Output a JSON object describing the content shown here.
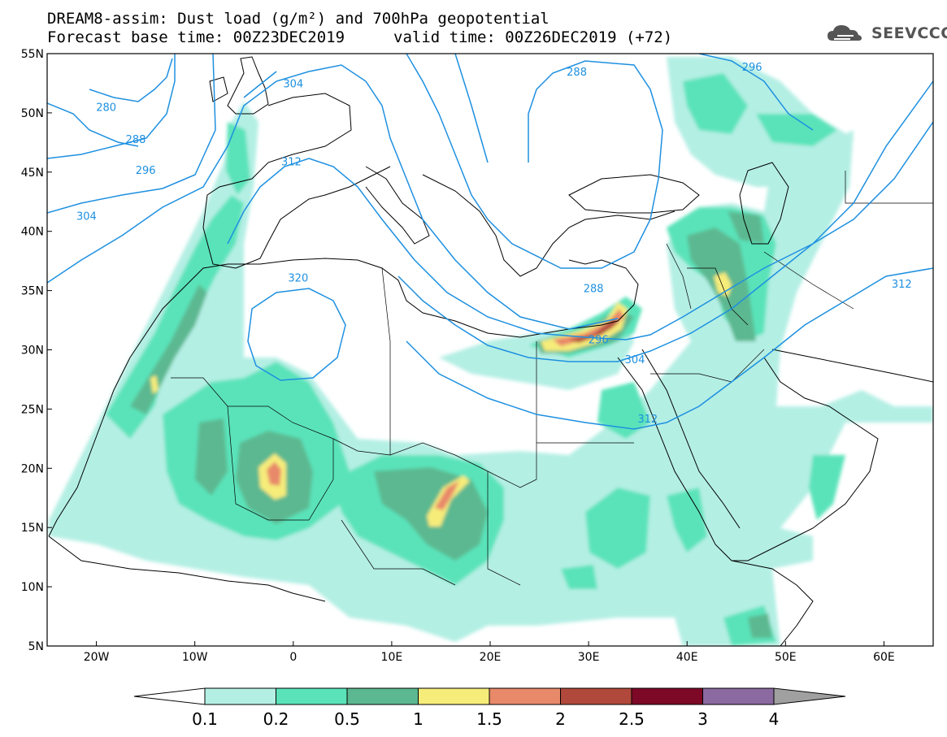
{
  "title": {
    "line1": "DREAM8-assim: Dust load (g/m²) and 700hPa geopotential",
    "line2a": "Forecast base time: 00Z23DEC2019",
    "line2b": "valid time: 00Z26DEC2019 (+72)"
  },
  "logo": {
    "text": "SEEVCCC",
    "icon": "cloud-icon"
  },
  "axes": {
    "lat_labels": [
      "55N",
      "50N",
      "45N",
      "40N",
      "35N",
      "30N",
      "25N",
      "20N",
      "15N",
      "10N",
      "5N"
    ],
    "lat_values": [
      55,
      50,
      45,
      40,
      35,
      30,
      25,
      20,
      15,
      10,
      5
    ],
    "lon_labels": [
      "20W",
      "10W",
      "0",
      "10E",
      "20E",
      "30E",
      "40E",
      "50E",
      "60E"
    ],
    "lon_values": [
      -20,
      -10,
      0,
      10,
      20,
      30,
      40,
      50,
      60
    ],
    "lon_range": [
      -25,
      65
    ],
    "lat_range": [
      5,
      55
    ]
  },
  "contours": {
    "color": "#1e90e0",
    "labels": [
      {
        "text": "280",
        "lon": -19,
        "lat": 50.5
      },
      {
        "text": "288",
        "lon": -16,
        "lat": 47.8
      },
      {
        "text": "296",
        "lon": -15,
        "lat": 45.2
      },
      {
        "text": "304",
        "lon": -21,
        "lat": 41.3
      },
      {
        "text": "304",
        "lon": 0,
        "lat": 52.5
      },
      {
        "text": "312",
        "lon": -0.2,
        "lat": 45.9
      },
      {
        "text": "320",
        "lon": 0.5,
        "lat": 36.1
      },
      {
        "text": "288",
        "lon": 28.8,
        "lat": 53.5
      },
      {
        "text": "296",
        "lon": 46.6,
        "lat": 53.9
      },
      {
        "text": "288",
        "lon": 30.5,
        "lat": 35.2
      },
      {
        "text": "296",
        "lon": 31,
        "lat": 30.9
      },
      {
        "text": "304",
        "lon": 34.7,
        "lat": 29.2
      },
      {
        "text": "312",
        "lon": 36,
        "lat": 24.2
      },
      {
        "text": "312",
        "lon": 61.8,
        "lat": 35.6
      }
    ]
  },
  "legend": {
    "labels": [
      "0.1",
      "0.2",
      "0.5",
      "1",
      "1.5",
      "2",
      "2.5",
      "3",
      "4"
    ],
    "colors": [
      "#b4efe4",
      "#5ae3b9",
      "#5bb890",
      "#f6ec7a",
      "#e8896a",
      "#b0493b",
      "#7d0927",
      "#8a6aa0"
    ],
    "under_color": "#ffffff",
    "over_color": "#a0a0a0"
  }
}
